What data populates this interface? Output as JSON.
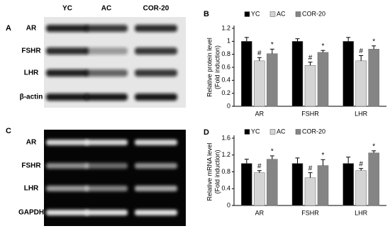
{
  "blot_a": {
    "panel": "A",
    "lanes": [
      "YC",
      "AC",
      "COR-20"
    ],
    "rows": [
      "AR",
      "FSHR",
      "LHR",
      "β-actin"
    ]
  },
  "gel_c": {
    "panel": "C",
    "rows": [
      "AR",
      "FSHR",
      "LHR",
      "GAPDH"
    ]
  },
  "chart_data": [
    {
      "type": "bar",
      "panel": "B",
      "ylabel": [
        "Relative protein level",
        "(Fold induction)"
      ],
      "categories": [
        "AR",
        "FSHR",
        "LHR"
      ],
      "ylim": [
        0,
        1.2
      ],
      "yticks": [
        0,
        0.2,
        0.4,
        0.6,
        0.8,
        1,
        1.2
      ],
      "legend": "top",
      "series": [
        {
          "name": "YC",
          "color": "#000000",
          "values": [
            1.0,
            1.0,
            1.0
          ],
          "errors": [
            0.06,
            0.04,
            0.06
          ]
        },
        {
          "name": "AC",
          "color": "#d4d4d4",
          "values": [
            0.7,
            0.63,
            0.7
          ],
          "errors": [
            0.05,
            0.05,
            0.08
          ],
          "marks": [
            "#",
            "#",
            "#"
          ]
        },
        {
          "name": "COR-20",
          "color": "#858585",
          "values": [
            0.81,
            0.83,
            0.88
          ],
          "errors": [
            0.07,
            0.03,
            0.05
          ],
          "marks": [
            "*",
            "*",
            "*"
          ]
        }
      ]
    },
    {
      "type": "bar",
      "panel": "D",
      "ylabel": [
        "Relative mRNA level",
        "(Fold induction)"
      ],
      "categories": [
        "AR",
        "FSHR",
        "LHR"
      ],
      "ylim": [
        0,
        1.6
      ],
      "yticks": [
        0,
        0.4,
        0.8,
        1.2,
        1.6
      ],
      "legend": "top",
      "series": [
        {
          "name": "YC",
          "color": "#000000",
          "values": [
            1.0,
            1.0,
            1.0
          ],
          "errors": [
            0.1,
            0.13,
            0.15
          ]
        },
        {
          "name": "AC",
          "color": "#d4d4d4",
          "values": [
            0.78,
            0.66,
            0.83
          ],
          "errors": [
            0.05,
            0.12,
            0.05
          ],
          "marks": [
            "#",
            "#",
            "#"
          ]
        },
        {
          "name": "COR-20",
          "color": "#858585",
          "values": [
            1.1,
            0.95,
            1.25
          ],
          "errors": [
            0.08,
            0.14,
            0.05
          ],
          "marks": [
            "*",
            "*",
            "*"
          ]
        }
      ]
    }
  ]
}
